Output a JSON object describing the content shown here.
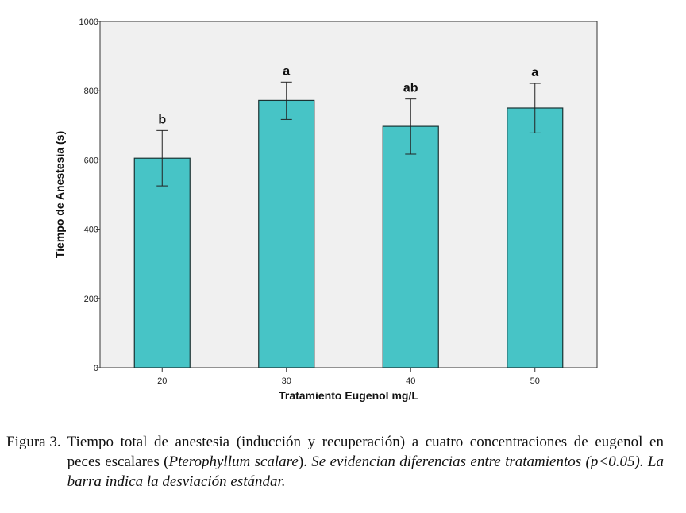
{
  "chart_data": {
    "type": "bar",
    "xlabel": "Tratamiento Eugenol mg/L",
    "ylabel": "Tiempo de Anestesia (s)",
    "ylim": [
      0,
      1000
    ],
    "yticks": [
      0,
      200,
      400,
      600,
      800,
      1000
    ],
    "categories": [
      "20",
      "30",
      "40",
      "50"
    ],
    "values": [
      605,
      772,
      697,
      750
    ],
    "error_low": [
      525,
      717,
      617,
      678
    ],
    "error_high": [
      685,
      825,
      776,
      821
    ],
    "significance_labels": [
      "b",
      "a",
      "ab",
      "a"
    ],
    "grid": false,
    "legend": "none",
    "colors": {
      "bar_fill": "#47C4C6",
      "bar_stroke": "#1a3333",
      "plot_bg": "#F0F0F0",
      "axis": "#333333"
    }
  },
  "caption": {
    "label": "Figura 3.",
    "text_1": "Tiempo total de anestesia (inducción y recuperación) a cuatro concentraciones de eugenol en peces escalares (",
    "species": "Pterophyllum scalare",
    "text_2": "). ",
    "text_3": "Se evidencian diferencias entre tratamientos (p<0.05). La barra indica la desviación estándar."
  }
}
